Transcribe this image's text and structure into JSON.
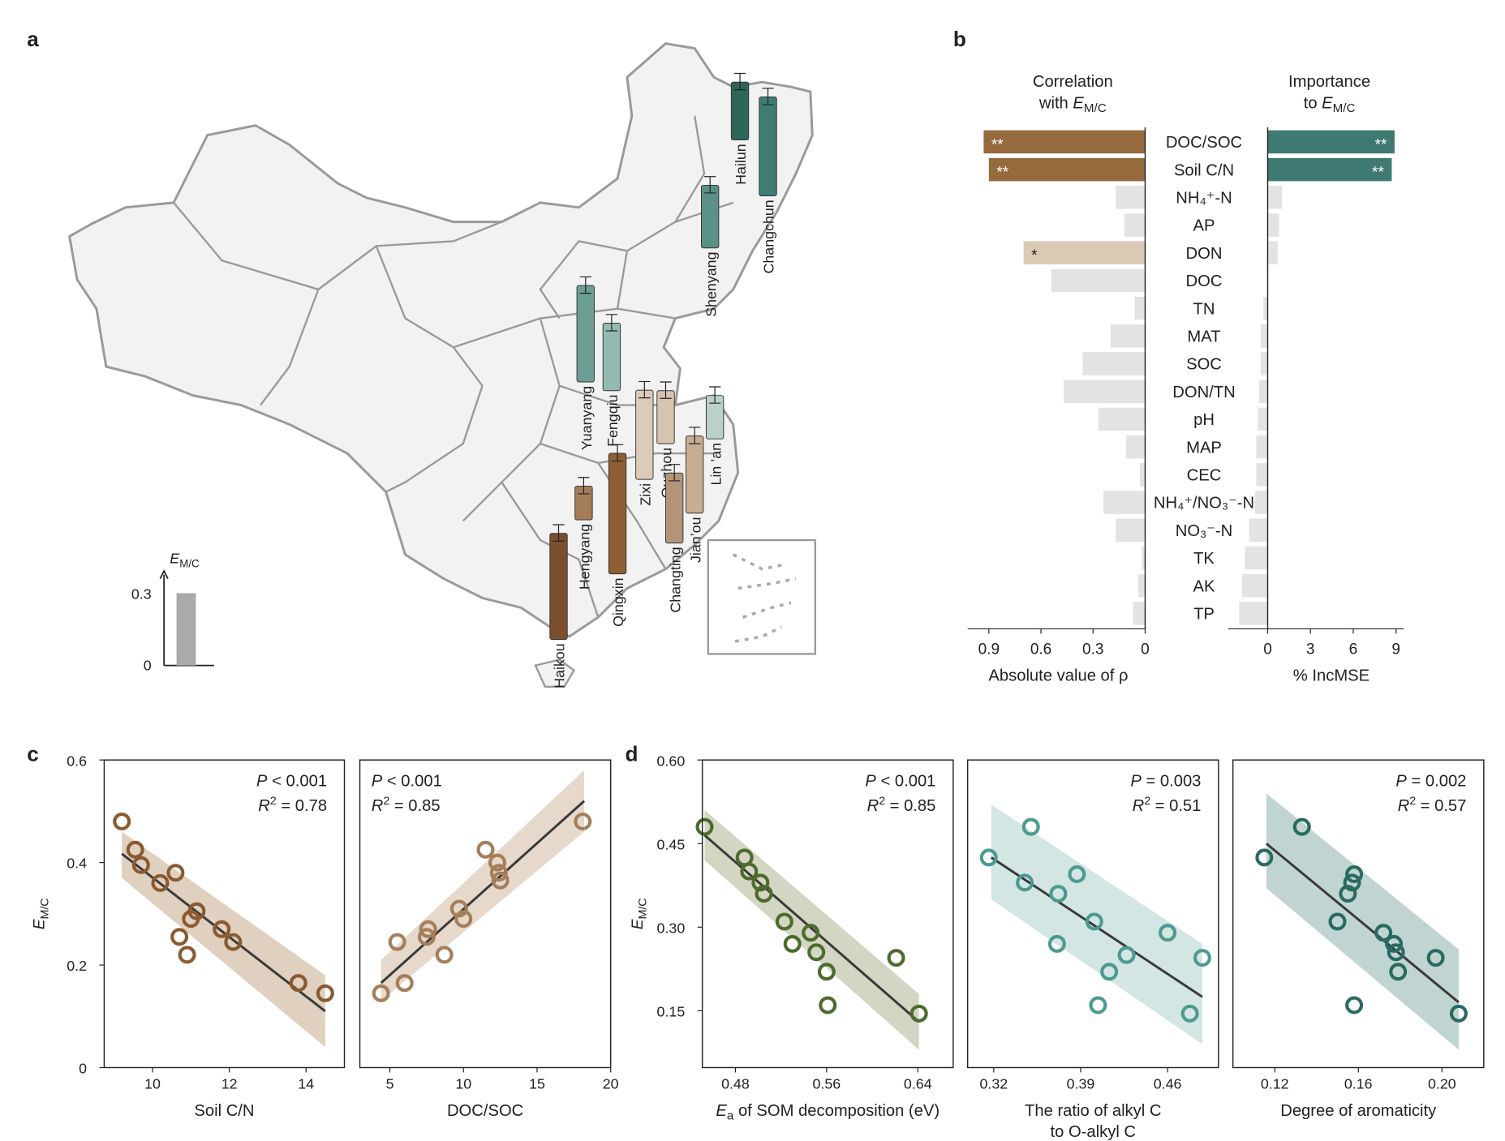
{
  "panel_labels": {
    "a": "a",
    "b": "b",
    "c": "c",
    "d": "d"
  },
  "y_symbol": {
    "main": "E",
    "sub": "M/C"
  },
  "map": {
    "legend": {
      "title_main": "E",
      "title_sub": "M/C",
      "tick_high": "0.3",
      "tick_low": "0",
      "value": 0.3,
      "color": "#aaaaaa"
    },
    "sites": [
      {
        "name": "Hailun",
        "value": 0.24,
        "color": "#2e665c"
      },
      {
        "name": "Changchun",
        "value": 0.41,
        "color": "#3f7d74"
      },
      {
        "name": "Shenyang",
        "value": 0.26,
        "color": "#5a9088"
      },
      {
        "name": "Yuanyang",
        "value": 0.4,
        "color": "#6b9f96"
      },
      {
        "name": "Fengqiu",
        "value": 0.28,
        "color": "#93b9b2"
      },
      {
        "name": "Zixi",
        "value": 0.37,
        "color": "#dccbb9"
      },
      {
        "name": "Quzhou",
        "value": 0.22,
        "color": "#d6c3b0"
      },
      {
        "name": "Lin ’an",
        "value": 0.18,
        "color": "#bcd0ca"
      },
      {
        "name": "Jian’ou",
        "value": 0.32,
        "color": "#c8ad92"
      },
      {
        "name": "Changting",
        "value": 0.29,
        "color": "#b39477"
      },
      {
        "name": "Qingxin",
        "value": 0.5,
        "color": "#8d5f33"
      },
      {
        "name": "Hengyang",
        "value": 0.14,
        "color": "#a47c58"
      },
      {
        "name": "Haikou",
        "value": 0.44,
        "color": "#7b4f2c"
      }
    ]
  },
  "chart_data": [
    {
      "type": "bar",
      "panel": "b-left",
      "title_line1": "Correlation",
      "title_line2_prefix": "with ",
      "xlabel": "Absolute value of ρ",
      "xlim": [
        0,
        0.95
      ],
      "xticks": [
        "0.9",
        "0.6",
        "0.3",
        "0"
      ],
      "xtick_values": [
        0.9,
        0.6,
        0.3,
        0
      ],
      "categories": [
        "DOC/SOC",
        "Soil C/N",
        "NH₄⁺-N",
        "AP",
        "DON",
        "DOC",
        "TN",
        "MAT",
        "SOC",
        "DON/TN",
        "pH",
        "MAP",
        "CEC",
        "NH₄⁺/NO₃⁻-N",
        "NO₃⁻-N",
        "TK",
        "AK",
        "TP"
      ],
      "values": [
        0.93,
        0.9,
        0.17,
        0.12,
        0.7,
        0.54,
        0.06,
        0.2,
        0.36,
        0.47,
        0.27,
        0.11,
        0.03,
        0.24,
        0.17,
        0.02,
        0.04,
        0.07
      ],
      "significance": [
        "**",
        "**",
        "",
        "",
        "*",
        "",
        "",
        "",
        "",
        "",
        "",
        "",
        "",
        "",
        "",
        "",
        "",
        ""
      ],
      "colors": {
        "highly_significant": "#956a3d",
        "significant": "#dac9b5",
        "ns": "#e3e3e3"
      }
    },
    {
      "type": "bar",
      "panel": "b-right",
      "title_line1": "Importance",
      "title_line2_prefix": "to ",
      "xlabel": "% IncMSE",
      "xlim": [
        -2.2,
        9.5
      ],
      "xticks": [
        "0",
        "3",
        "6",
        "9"
      ],
      "xtick_values": [
        0,
        3,
        6,
        9
      ],
      "categories": [
        "DOC/SOC",
        "Soil C/N",
        "NH₄⁺-N",
        "AP",
        "DON",
        "DOC",
        "TN",
        "MAT",
        "SOC",
        "DON/TN",
        "pH",
        "MAP",
        "CEC",
        "NH₄⁺/NO₃⁻-N",
        "NO₃⁻-N",
        "TK",
        "AK",
        "TP"
      ],
      "values": [
        8.9,
        8.7,
        1.0,
        0.8,
        0.7,
        0,
        -0.3,
        -0.5,
        -0.5,
        -0.6,
        -0.7,
        -0.8,
        -0.8,
        -0.9,
        -1.3,
        -1.6,
        -1.8,
        -2.0
      ],
      "significance": [
        "**",
        "**",
        "",
        "",
        "",
        "",
        "",
        "",
        "",
        "",
        "",
        "",
        "",
        "",
        "",
        "",
        "",
        ""
      ],
      "colors": {
        "highly_significant": "#3f7a72",
        "ns": "#e3e3e3"
      }
    },
    {
      "type": "scatter",
      "panel": "c-1",
      "xlabel": "Soil C/N",
      "xlim": [
        8.74,
        15.0
      ],
      "ylim": [
        0,
        0.6
      ],
      "xticks": [
        10,
        12,
        14
      ],
      "yticks": [
        "0",
        "0.2",
        "0.4",
        "0.6"
      ],
      "ytick_values": [
        0,
        0.2,
        0.4,
        0.6
      ],
      "stat_p": "P < 0.001",
      "stat_r2": "0.78",
      "stat_align": "right",
      "x": [
        9.2,
        9.55,
        9.7,
        10.2,
        10.6,
        11.15,
        11.0,
        10.7,
        10.9,
        11.8,
        12.1,
        13.8,
        14.5
      ],
      "y": [
        0.48,
        0.425,
        0.395,
        0.36,
        0.38,
        0.305,
        0.29,
        0.255,
        0.22,
        0.27,
        0.245,
        0.165,
        0.145
      ],
      "fit": {
        "x": [
          9.2,
          14.5
        ],
        "y": [
          0.417,
          0.11
        ],
        "ci_low": [
          0.37,
          0.04
        ],
        "ci_high": [
          0.46,
          0.18
        ]
      },
      "color": "#8a5a30",
      "band_color": "#dccbb8"
    },
    {
      "type": "scatter",
      "panel": "c-2",
      "xlabel": "DOC/SOC",
      "xlim": [
        2.96,
        20.0
      ],
      "ylim": [
        0,
        0.6
      ],
      "xticks": [
        5,
        10,
        15,
        20
      ],
      "stat_p": "P < 0.001",
      "stat_r2": "0.85",
      "stat_align": "left",
      "x": [
        4.4,
        5.5,
        6.0,
        7.6,
        7.5,
        8.7,
        9.7,
        10.0,
        11.5,
        12.3,
        12.4,
        12.5,
        18.1
      ],
      "y": [
        0.145,
        0.245,
        0.165,
        0.27,
        0.255,
        0.22,
        0.31,
        0.29,
        0.425,
        0.4,
        0.38,
        0.365,
        0.48
      ],
      "fit": {
        "x": [
          4.4,
          18.2
        ],
        "y": [
          0.165,
          0.52
        ],
        "ci_low": [
          0.13,
          0.46
        ],
        "ci_high": [
          0.21,
          0.58
        ]
      },
      "color": "#a57e5a",
      "band_color": "#e3d5c6"
    },
    {
      "type": "scatter",
      "panel": "d-1",
      "xlabel_main": "E",
      "xlabel_sub": "a",
      "xlabel": " of SOM decomposition (eV)",
      "xlim": [
        0.451,
        0.671
      ],
      "ylim": [
        0.048,
        0.6
      ],
      "xticks": [
        "0.48",
        "0.56",
        "0.64"
      ],
      "xtick_values": [
        0.48,
        0.56,
        0.64
      ],
      "yticks": [
        "0.15",
        "0.30",
        "0.45",
        "0.60"
      ],
      "ytick_values": [
        0.15,
        0.3,
        0.45,
        0.6
      ],
      "stat_p": "P < 0.001",
      "stat_r2": "0.85",
      "stat_align": "right",
      "x": [
        0.453,
        0.488,
        0.492,
        0.502,
        0.505,
        0.523,
        0.53,
        0.546,
        0.551,
        0.56,
        0.561,
        0.621,
        0.641
      ],
      "y": [
        0.48,
        0.425,
        0.4,
        0.38,
        0.36,
        0.31,
        0.27,
        0.29,
        0.255,
        0.22,
        0.16,
        0.245,
        0.145
      ],
      "fit": {
        "x": [
          0.453,
          0.641
        ],
        "y": [
          0.465,
          0.13
        ],
        "ci_low": [
          0.42,
          0.08
        ],
        "ci_high": [
          0.51,
          0.18
        ]
      },
      "color": "#4e6b2e",
      "band_color": "#cdd1bb"
    },
    {
      "type": "scatter",
      "panel": "d-2",
      "xlabel": "The ratio of alkyl C",
      "xlabel_line2": "to O-alkyl C",
      "xlim": [
        0.299,
        0.501
      ],
      "ylim": [
        0.048,
        0.6
      ],
      "xticks": [
        "0.32",
        "0.39",
        "0.46"
      ],
      "xtick_values": [
        0.32,
        0.39,
        0.46
      ],
      "stat_p": "P = 0.003",
      "stat_r2": "0.51",
      "stat_align": "right",
      "x": [
        0.316,
        0.35,
        0.345,
        0.372,
        0.387,
        0.401,
        0.371,
        0.427,
        0.413,
        0.404,
        0.46,
        0.488,
        0.478
      ],
      "y": [
        0.425,
        0.48,
        0.38,
        0.36,
        0.395,
        0.31,
        0.27,
        0.25,
        0.22,
        0.16,
        0.29,
        0.245,
        0.145
      ],
      "fit": {
        "x": [
          0.318,
          0.488
        ],
        "y": [
          0.425,
          0.175
        ],
        "ci_low": [
          0.35,
          0.09
        ],
        "ci_high": [
          0.52,
          0.27
        ]
      },
      "color": "#4c9a92",
      "band_color": "#cfe3e0"
    },
    {
      "type": "scatter",
      "panel": "d-3",
      "xlabel": "Degree of aromaticity",
      "xlim": [
        0.1,
        0.22
      ],
      "ylim": [
        0.048,
        0.6
      ],
      "xticks": [
        "0.12",
        "0.16",
        "0.20"
      ],
      "xtick_values": [
        0.12,
        0.16,
        0.2
      ],
      "stat_p": "P = 0.002",
      "stat_r2": "0.57",
      "stat_align": "right",
      "x": [
        0.115,
        0.133,
        0.158,
        0.157,
        0.155,
        0.15,
        0.172,
        0.177,
        0.178,
        0.179,
        0.197,
        0.158,
        0.208
      ],
      "y": [
        0.425,
        0.48,
        0.395,
        0.38,
        0.36,
        0.31,
        0.29,
        0.27,
        0.255,
        0.22,
        0.245,
        0.16,
        0.145
      ],
      "fit": {
        "x": [
          0.116,
          0.208
        ],
        "y": [
          0.45,
          0.165
        ],
        "ci_low": [
          0.37,
          0.08
        ],
        "ci_high": [
          0.54,
          0.26
        ]
      },
      "color": "#2a6a62",
      "band_color": "#b9d0cc"
    }
  ]
}
